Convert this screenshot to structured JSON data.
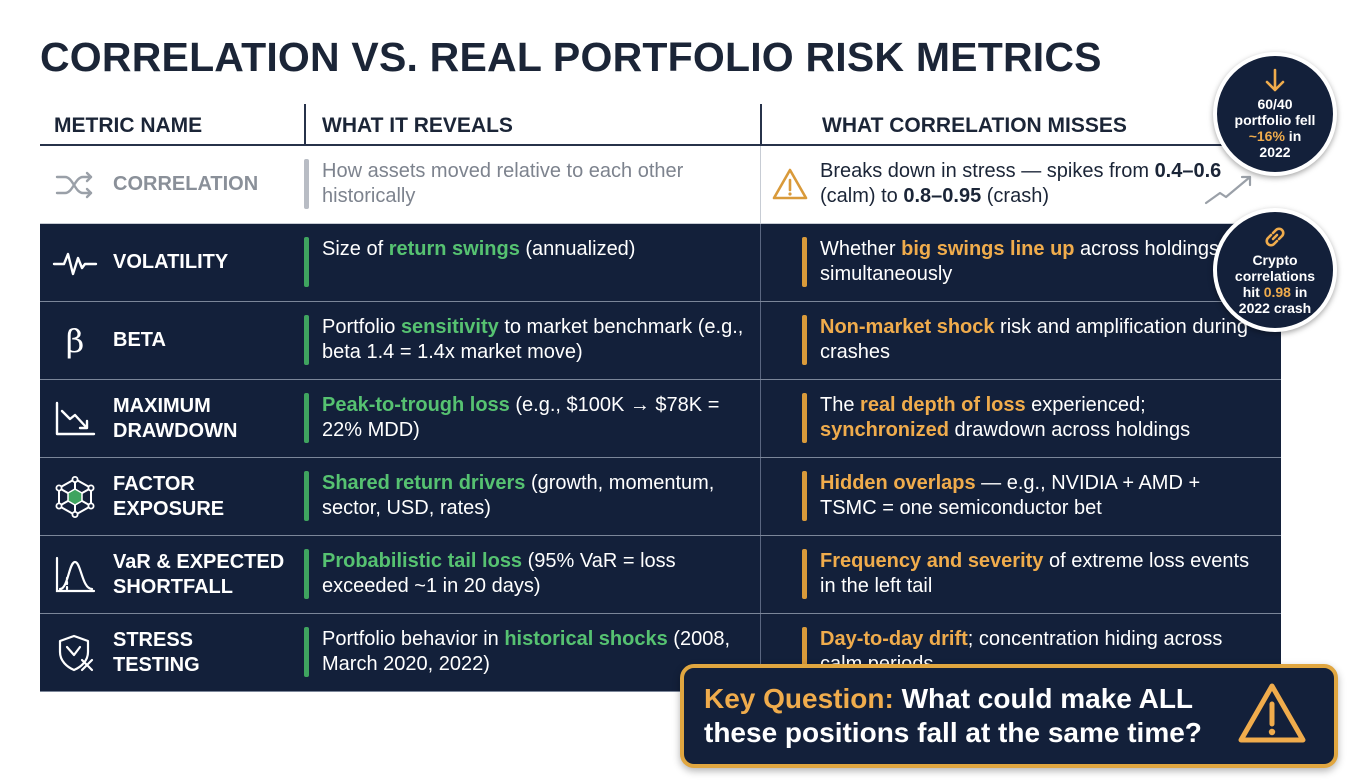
{
  "title": "CORRELATION VS. REAL PORTFOLIO RISK METRICS",
  "headers": {
    "metric": "METRIC NAME",
    "reveals": "WHAT IT REVEALS",
    "misses": "WHAT CORRELATION MISSES"
  },
  "rows": [
    {
      "icon": "shuffle-icon",
      "name": [
        "CORRELATION"
      ],
      "reveals": [
        {
          "t": "How assets moved relative to each other historically",
          "s": ""
        }
      ],
      "misses": [
        {
          "t": "Breaks down in stress — spikes from ",
          "s": ""
        },
        {
          "t": "0.4–0.6",
          "s": "b"
        },
        {
          "t": " (calm) to ",
          "s": ""
        },
        {
          "t": "0.8–0.95",
          "s": "b"
        },
        {
          "t": " (crash)",
          "s": ""
        }
      ]
    },
    {
      "icon": "pulse-icon",
      "name": [
        "VOLATILITY"
      ],
      "reveals": [
        {
          "t": "Size of ",
          "s": ""
        },
        {
          "t": "return swings",
          "s": "g"
        },
        {
          "t": " (annualized)",
          "s": ""
        }
      ],
      "misses": [
        {
          "t": "Whether ",
          "s": ""
        },
        {
          "t": "big swings line up",
          "s": "o"
        },
        {
          "t": " across holdings simultaneously",
          "s": ""
        }
      ]
    },
    {
      "icon": "beta-icon",
      "name": [
        "BETA"
      ],
      "reveals": [
        {
          "t": "Portfolio ",
          "s": ""
        },
        {
          "t": "sensitivity",
          "s": "g"
        },
        {
          "t": " to market benchmark (e.g., beta 1.4 = 1.4x market move)",
          "s": ""
        }
      ],
      "misses": [
        {
          "t": "Non-market shock",
          "s": "o"
        },
        {
          "t": " risk and amplification during crashes",
          "s": ""
        }
      ]
    },
    {
      "icon": "drawdown-chart-icon",
      "name": [
        "MAXIMUM",
        "DRAWDOWN"
      ],
      "reveals": [
        {
          "t": "Peak-to-trough loss",
          "s": "g"
        },
        {
          "t": " (e.g., $100K → $78K = 22% MDD)",
          "s": ""
        }
      ],
      "misses": [
        {
          "t": "The ",
          "s": ""
        },
        {
          "t": "real depth of loss",
          "s": "o"
        },
        {
          "t": " experienced; ",
          "s": ""
        },
        {
          "t": "synchronized",
          "s": "o"
        },
        {
          "t": " drawdown across holdings",
          "s": ""
        }
      ]
    },
    {
      "icon": "network-hexagon-icon",
      "name": [
        "FACTOR",
        "EXPOSURE"
      ],
      "reveals": [
        {
          "t": "Shared return drivers",
          "s": "g"
        },
        {
          "t": " (growth, momentum, sector, USD, rates)",
          "s": ""
        }
      ],
      "misses": [
        {
          "t": "Hidden overlaps",
          "s": "o"
        },
        {
          "t": " — e.g., NVIDIA + AMD + TSMC = one semiconductor bet",
          "s": ""
        }
      ]
    },
    {
      "icon": "bell-curve-icon",
      "name": [
        "VaR & EXPECTED",
        "SHORTFALL"
      ],
      "reveals": [
        {
          "t": "Probabilistic tail loss",
          "s": "g"
        },
        {
          "t": " (95% VaR = loss exceeded ~1 in 20 days)",
          "s": ""
        }
      ],
      "misses": [
        {
          "t": "Frequency and severity",
          "s": "o"
        },
        {
          "t": " of extreme loss events in the left tail",
          "s": ""
        }
      ]
    },
    {
      "icon": "shield-cross-icon",
      "name": [
        "STRESS",
        "TESTING"
      ],
      "reveals": [
        {
          "t": "Portfolio behavior in ",
          "s": ""
        },
        {
          "t": "historical shocks",
          "s": "g"
        },
        {
          "t": " (2008, March 2020, 2022)",
          "s": ""
        }
      ],
      "misses": [
        {
          "t": "Day-to-day drift",
          "s": "o"
        },
        {
          "t": "; concentration hiding across calm periods",
          "s": ""
        }
      ]
    }
  ],
  "callouts": {
    "portfolio": {
      "icon": "down-arrow-icon",
      "line1": "60/40",
      "line2": "portfolio fell",
      "hl": "~16%",
      "line3": " in",
      "line4": "2022"
    },
    "crypto": {
      "icon": "link-icon",
      "line1": "Crypto",
      "line2": "correlations",
      "pre": "hit ",
      "hl": "0.98",
      "post": " in",
      "line4": "2022 crash"
    }
  },
  "key_question": {
    "label": "Key Question:",
    "text": " What could make ALL these positions fall at the same time?"
  },
  "colors": {
    "navy": "#13203a",
    "green": "#56c271",
    "orange": "#f0ac4c",
    "gold_border": "#e0a640"
  }
}
